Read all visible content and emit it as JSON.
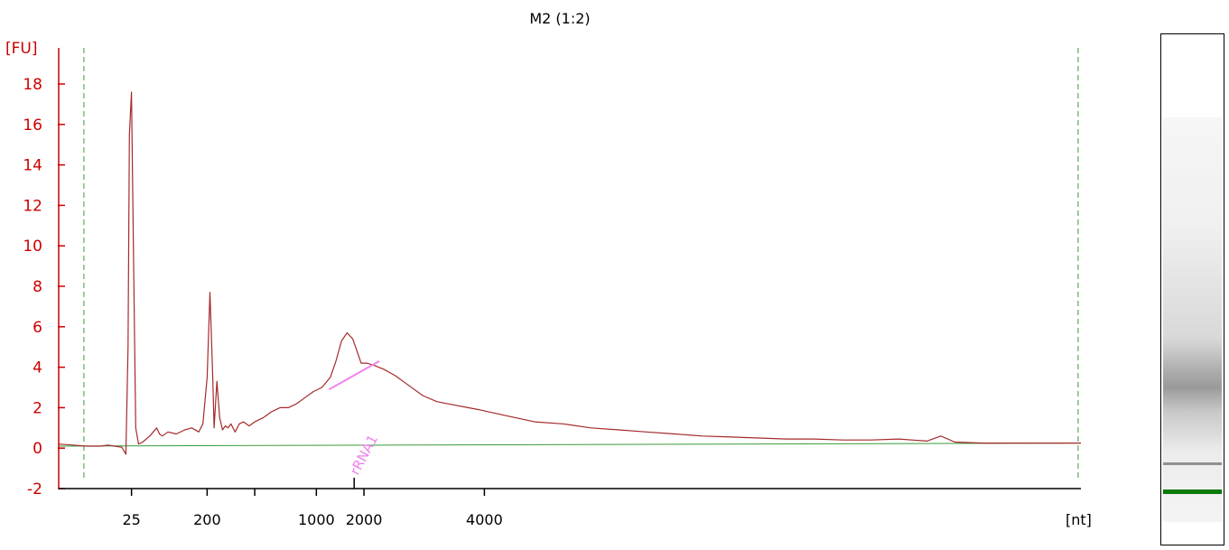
{
  "sample_title": "M2 (1:2)",
  "colors": {
    "axis_y": "#cc0000",
    "axis_x": "#000000",
    "trace": "#a52a2a",
    "baseline": "#3a9a3a",
    "window_marker": "#3a9a3a",
    "peak_annotation": "#ee82ee",
    "marker_band": "#0a7a0a"
  },
  "chart_data": {
    "type": "line",
    "title": "M2 (1:2)",
    "y_unit": "[FU]",
    "x_unit": "[nt]",
    "ylim": [
      -2,
      18.5
    ],
    "xlim": [
      0,
      73
    ],
    "y_ticks": [
      -2,
      0,
      2,
      4,
      6,
      8,
      10,
      12,
      14,
      16,
      18
    ],
    "x_ticks": [
      {
        "pos": 5.2,
        "label": "25"
      },
      {
        "pos": 10.6,
        "label": "200"
      },
      {
        "pos": 14.0,
        "label": ""
      },
      {
        "pos": 18.4,
        "label": "1000"
      },
      {
        "pos": 21.8,
        "label": "2000"
      },
      {
        "pos": 30.4,
        "label": "4000"
      }
    ],
    "series": [
      {
        "x": [
          0,
          1,
          2,
          3,
          3.5,
          4,
          4.5,
          4.8,
          4.95,
          5.05,
          5.2,
          5.35,
          5.5,
          5.7,
          6,
          6.5,
          7,
          7.2,
          7.4,
          7.8,
          8.4,
          9,
          9.5,
          10,
          10.3,
          10.6,
          10.8,
          11.0,
          11.1,
          11.2,
          11.3,
          11.5,
          11.7,
          11.9,
          12.1,
          12.3,
          12.6,
          12.9,
          13.2,
          13.6,
          14.0,
          14.6,
          15.2,
          15.8,
          16.4,
          17.0,
          17.6,
          18.2,
          18.8,
          19.4,
          19.8,
          20.2,
          20.6,
          21.0,
          21.3,
          21.6,
          22.0,
          22.5,
          23.2,
          24.0,
          25.0,
          26.0,
          27.0,
          28.5,
          30.0,
          32.0,
          34.0,
          36.0,
          38.0,
          40.0,
          42.0,
          44.0,
          46.0,
          48.0,
          50.0,
          52.0,
          54.0,
          56.0,
          58.0,
          60.0,
          62.0,
          63.0,
          64.0,
          66.0,
          68.0,
          70.0,
          72.0,
          73.0
        ],
        "y": [
          0.2,
          0.15,
          0.1,
          0.1,
          0.15,
          0.1,
          0.05,
          -0.3,
          5.0,
          15.5,
          17.6,
          9.0,
          1.0,
          0.2,
          0.3,
          0.6,
          1.0,
          0.7,
          0.6,
          0.8,
          0.7,
          0.9,
          1.0,
          0.8,
          1.2,
          3.5,
          7.7,
          3.5,
          1.0,
          2.2,
          3.3,
          1.5,
          0.9,
          1.1,
          1.0,
          1.2,
          0.8,
          1.2,
          1.3,
          1.1,
          1.3,
          1.5,
          1.8,
          2.0,
          2.0,
          2.2,
          2.5,
          2.8,
          3.0,
          3.5,
          4.3,
          5.3,
          5.7,
          5.4,
          4.8,
          4.2,
          4.2,
          4.1,
          3.9,
          3.6,
          3.1,
          2.6,
          2.3,
          2.1,
          1.9,
          1.6,
          1.3,
          1.2,
          1.0,
          0.9,
          0.8,
          0.7,
          0.6,
          0.55,
          0.5,
          0.45,
          0.45,
          0.4,
          0.4,
          0.45,
          0.35,
          0.6,
          0.3,
          0.25,
          0.25,
          0.25,
          0.25,
          0.25
        ]
      }
    ],
    "baseline": {
      "x": [
        0,
        73
      ],
      "y": [
        0.1,
        0.25
      ]
    },
    "window_markers_x": [
      1.8,
      72.8
    ],
    "annotations": [
      {
        "label": "rRNA1",
        "tick_x": 21.1,
        "fit_x": [
          19.3,
          22.9
        ],
        "fit_y": [
          2.9,
          4.3
        ]
      }
    ]
  },
  "gel": {
    "smear_peak_fraction": 0.69,
    "lower_band_fraction": 0.84,
    "marker_band_fraction": 0.895
  }
}
